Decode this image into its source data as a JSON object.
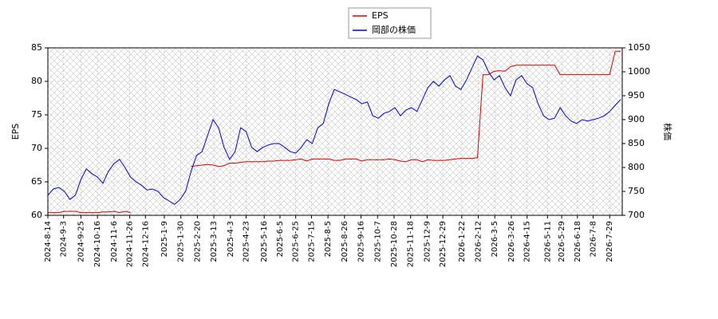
{
  "chart_data": {
    "type": "line",
    "ylabel": "EPS",
    "y2label": "株価",
    "xlim": [
      "2024-08-14",
      "2026-08-14"
    ],
    "xticks": [
      "2024-8-14",
      "2024-9-3",
      "2024-9-25",
      "2024-10-16",
      "2024-11-6",
      "2024-11-26",
      "2024-12-16",
      "2025-1-9",
      "2025-1-30",
      "2025-2-20",
      "2025-3-13",
      "2025-4-3",
      "2025-4-23",
      "2025-5-16",
      "2025-6-5",
      "2025-6-25",
      "2025-7-15",
      "2025-8-5",
      "2025-8-26",
      "2025-9-16",
      "2025-10-7",
      "2025-10-28",
      "2025-11-18",
      "2025-12-9",
      "2025-12-29",
      "2026-1-22",
      "2026-2-12",
      "2026-3-5",
      "2026-3-26",
      "2026-4-15",
      "2026-5-11",
      "2026-5-29",
      "2026-6-18",
      "2026-7-8",
      "2026-7-29"
    ],
    "ylim": [
      60,
      85
    ],
    "yticks": [
      60,
      65,
      70,
      75,
      80,
      85
    ],
    "y2lim": [
      700,
      1050
    ],
    "y2ticks": [
      700,
      750,
      800,
      850,
      900,
      950,
      1000,
      1050
    ],
    "grid": true,
    "legend": "top",
    "x": [
      "2024-08-14",
      "2024-08-21",
      "2024-08-28",
      "2024-09-04",
      "2024-09-11",
      "2024-09-18",
      "2024-09-25",
      "2024-10-02",
      "2024-10-09",
      "2024-10-16",
      "2024-10-23",
      "2024-10-30",
      "2024-11-06",
      "2024-11-13",
      "2024-11-20",
      "2024-11-27",
      "2024-12-04",
      "2024-12-11",
      "2024-12-18",
      "2024-12-25",
      "2025-01-01",
      "2025-01-08",
      "2025-01-15",
      "2025-01-22",
      "2025-01-29",
      "2025-02-05",
      "2025-02-12",
      "2025-02-19",
      "2025-02-26",
      "2025-03-05",
      "2025-03-12",
      "2025-03-19",
      "2025-03-26",
      "2025-04-02",
      "2025-04-09",
      "2025-04-16",
      "2025-04-23",
      "2025-04-30",
      "2025-05-07",
      "2025-05-14",
      "2025-05-21",
      "2025-05-28",
      "2025-06-04",
      "2025-06-11",
      "2025-06-18",
      "2025-06-25",
      "2025-07-02",
      "2025-07-09",
      "2025-07-16",
      "2025-07-23",
      "2025-07-30",
      "2025-08-06",
      "2025-08-13",
      "2025-08-20",
      "2025-08-27",
      "2025-09-03",
      "2025-09-10",
      "2025-09-17",
      "2025-09-24",
      "2025-10-01",
      "2025-10-08",
      "2025-10-15",
      "2025-10-22",
      "2025-10-29",
      "2025-11-05",
      "2025-11-12",
      "2025-11-19",
      "2025-11-26",
      "2025-12-03",
      "2025-12-10",
      "2025-12-17",
      "2025-12-24",
      "2025-12-31",
      "2026-01-07",
      "2026-01-14",
      "2026-01-21",
      "2026-01-28",
      "2026-02-04",
      "2026-02-11",
      "2026-02-18",
      "2026-02-25",
      "2026-03-04",
      "2026-03-11",
      "2026-03-18",
      "2026-03-25",
      "2026-04-01",
      "2026-04-08",
      "2026-04-15",
      "2026-04-22",
      "2026-04-29",
      "2026-05-06",
      "2026-05-13",
      "2026-05-20",
      "2026-05-27",
      "2026-06-03",
      "2026-06-10",
      "2026-06-17",
      "2026-06-24",
      "2026-07-01",
      "2026-07-08",
      "2026-07-15",
      "2026-07-22",
      "2026-07-29",
      "2026-08-05",
      "2026-08-12"
    ],
    "series": [
      {
        "name": "EPS",
        "color": "#dd0000",
        "axis": "y",
        "values": [
          60.4,
          60.4,
          60.4,
          60.6,
          60.6,
          60.6,
          60.4,
          60.4,
          60.4,
          60.4,
          60.5,
          60.5,
          60.6,
          60.4,
          60.6,
          60.4,
          null,
          null,
          null,
          null,
          null,
          null,
          null,
          null,
          null,
          null,
          67.3,
          67.4,
          67.5,
          67.6,
          67.5,
          67.3,
          67.4,
          67.8,
          67.8,
          67.9,
          68.0,
          68.0,
          68.0,
          68.0,
          68.1,
          68.1,
          68.2,
          68.2,
          68.2,
          68.3,
          68.4,
          68.1,
          68.4,
          68.4,
          68.4,
          68.4,
          68.2,
          68.2,
          68.4,
          68.4,
          68.4,
          68.1,
          68.3,
          68.3,
          68.3,
          68.3,
          68.4,
          68.3,
          68.1,
          68.0,
          68.3,
          68.3,
          68.0,
          68.3,
          68.2,
          68.2,
          68.2,
          68.3,
          68.4,
          68.5,
          68.5,
          68.5,
          68.6,
          81.0,
          81.0,
          81.5,
          81.6,
          81.5,
          82.2,
          82.4,
          82.4,
          82.4,
          82.4,
          82.4,
          82.4,
          82.4,
          82.4,
          81.0,
          81.0,
          81.0,
          81.0,
          81.0,
          81.0,
          81.0,
          81.0,
          81.0,
          81.0,
          84.5,
          84.5
        ]
      },
      {
        "name": "岡部の株価",
        "color": "#0000dd",
        "axis": "y2",
        "values": [
          742,
          755,
          758,
          750,
          733,
          742,
          775,
          797,
          787,
          780,
          767,
          792,
          808,
          817,
          800,
          780,
          770,
          763,
          753,
          755,
          750,
          737,
          730,
          723,
          733,
          750,
          792,
          825,
          833,
          867,
          900,
          883,
          842,
          817,
          833,
          883,
          875,
          842,
          833,
          842,
          847,
          850,
          850,
          842,
          833,
          830,
          842,
          858,
          850,
          883,
          892,
          933,
          963,
          958,
          953,
          947,
          942,
          933,
          937,
          908,
          903,
          913,
          917,
          925,
          908,
          920,
          925,
          917,
          942,
          967,
          980,
          970,
          983,
          992,
          970,
          963,
          983,
          1008,
          1033,
          1025,
          1000,
          983,
          992,
          967,
          950,
          983,
          992,
          975,
          967,
          933,
          908,
          900,
          903,
          925,
          908,
          897,
          892,
          900,
          897,
          900,
          903,
          908,
          917,
          930,
          942
        ]
      }
    ]
  }
}
